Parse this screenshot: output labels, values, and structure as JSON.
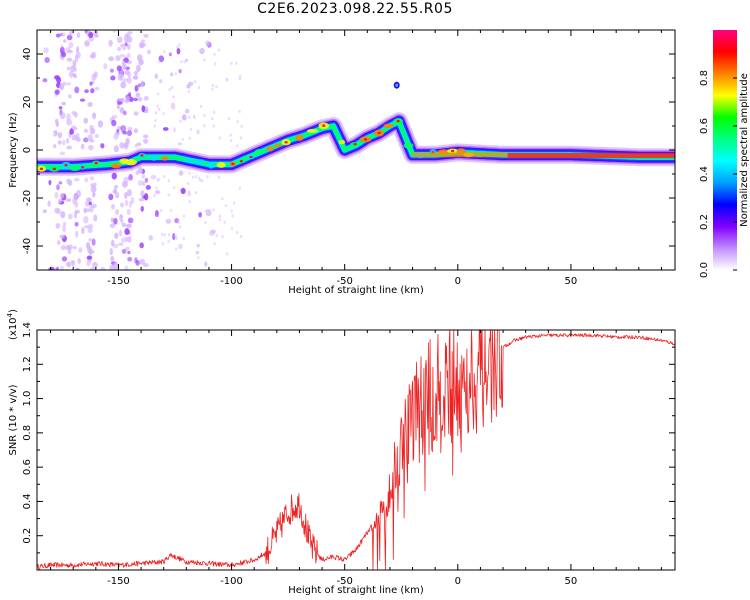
{
  "page_title": "C2E6.2023.098.22.55.R05",
  "chart_data": [
    {
      "type": "heatmap",
      "title": "C2E6.2023.098.22.55.R05",
      "xlabel": "Height of straight line (km)",
      "ylabel": "Frequency (Hz)",
      "xlim": [
        -186,
        96
      ],
      "ylim": [
        -50,
        50
      ],
      "xticks": [
        -150,
        -100,
        -50,
        0,
        50
      ],
      "yticks": [
        -40,
        -20,
        0,
        20,
        40
      ],
      "colorbar": {
        "label": "Normalized spectral amplitude",
        "range": [
          0.0,
          1.0
        ],
        "ticks": [
          "0.0",
          "0.2",
          "0.4",
          "0.6",
          "0.8"
        ],
        "colors": [
          "#ffffff",
          "#c08cff",
          "#8000ff",
          "#0000ff",
          "#00a0ff",
          "#00ffff",
          "#00ff80",
          "#00ff00",
          "#ffff00",
          "#ff8000",
          "#ff0000",
          "#ff0080"
        ]
      },
      "ridge": {
        "description_points_x": [
          -186,
          -170,
          -155,
          -145,
          -140,
          -125,
          -110,
          -100,
          -95,
          -85,
          -75,
          -68,
          -60,
          -55,
          -50,
          -45,
          -40,
          -35,
          -30,
          -26,
          -20,
          -10,
          0,
          20,
          50,
          80,
          96
        ],
        "frequency_hz": [
          -7,
          -7,
          -6,
          -5,
          -3,
          -3,
          -6,
          -6,
          -4,
          0,
          4,
          6,
          9,
          10,
          0,
          2,
          5,
          7,
          10,
          12,
          -2,
          -2,
          -1,
          -2,
          -2,
          -3,
          -3
        ]
      }
    },
    {
      "type": "line",
      "xlabel": "Height of straight line (km)",
      "ylabel": "SNR (10 * v/v)",
      "multiplier_label": "(x10",
      "multiplier_exp": "4",
      "multiplier_close": ")",
      "xlim": [
        -186,
        96
      ],
      "ylim": [
        0,
        1.4
      ],
      "xticks": [
        -150,
        -100,
        -50,
        0,
        50
      ],
      "yticks": [
        0.2,
        0.4,
        0.6,
        0.8,
        1.0,
        1.2,
        1.4
      ],
      "ytick_labels": [
        "0.2",
        "0.4",
        "0.6",
        "0.8",
        "1.0",
        "1.2",
        "1.4"
      ],
      "series": [
        {
          "name": "SNR",
          "color": "#ee2222",
          "x": [
            -186,
            -180,
            -170,
            -160,
            -150,
            -140,
            -130,
            -127,
            -120,
            -110,
            -100,
            -90,
            -85,
            -80,
            -75,
            -70,
            -65,
            -60,
            -55,
            -50,
            -45,
            -40,
            -35,
            -30,
            -25,
            -20,
            -15,
            -10,
            -5,
            0,
            5,
            10,
            15,
            20,
            25,
            30,
            40,
            50,
            60,
            70,
            80,
            90,
            96
          ],
          "values": [
            0.02,
            0.03,
            0.03,
            0.04,
            0.03,
            0.04,
            0.05,
            0.09,
            0.05,
            0.04,
            0.03,
            0.06,
            0.1,
            0.22,
            0.35,
            0.4,
            0.15,
            0.06,
            0.08,
            0.06,
            0.12,
            0.22,
            0.3,
            0.5,
            0.75,
            0.95,
            1.0,
            1.05,
            1.1,
            1.15,
            1.17,
            1.2,
            1.24,
            1.3,
            1.34,
            1.36,
            1.37,
            1.37,
            1.37,
            1.36,
            1.36,
            1.34,
            1.32
          ]
        }
      ]
    }
  ]
}
